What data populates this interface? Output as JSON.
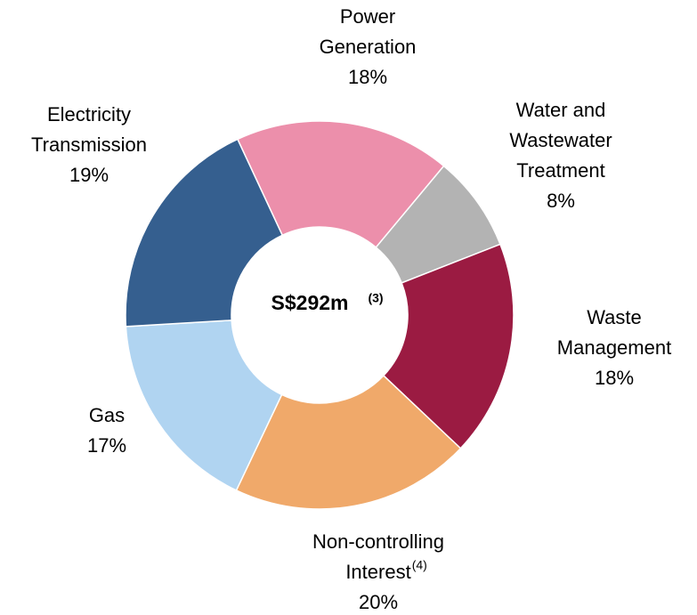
{
  "chart_data": {
    "type": "donut",
    "center_label": "S$292m",
    "center_label_note": "(3)",
    "categories": [
      [
        "Power",
        "Generation"
      ],
      [
        "Water and",
        "Wastewater",
        "Treatment"
      ],
      [
        "Waste",
        "Management"
      ],
      [
        "Non-controlling",
        "Interest"
      ],
      [
        "Gas"
      ],
      [
        "Electricity",
        "Transmission"
      ]
    ],
    "category_notes": [
      null,
      null,
      null,
      "(4)",
      null,
      null
    ],
    "values": [
      18,
      8,
      18,
      20,
      17,
      19
    ],
    "value_labels": [
      "18%",
      "8%",
      "18%",
      "20%",
      "17%",
      "19%"
    ],
    "colors": [
      "#ec8fab",
      "#b3b3b3",
      "#9b1b42",
      "#f0a96a",
      "#b0d4f1",
      "#355f8f"
    ]
  }
}
